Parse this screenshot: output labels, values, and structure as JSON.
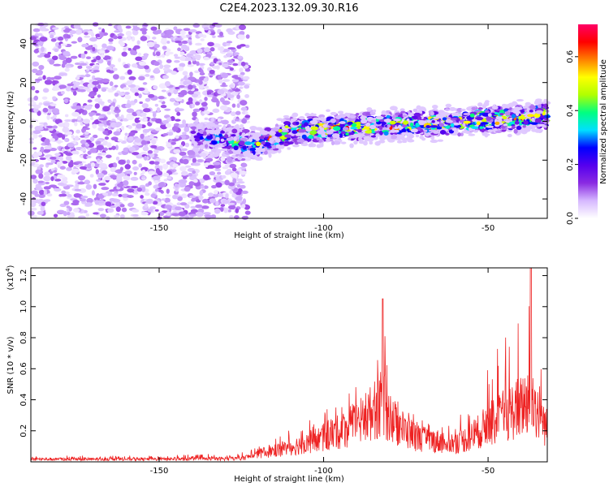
{
  "title": "C2E4.2023.132.09.30.R16",
  "chart_data": [
    {
      "type": "heatmap",
      "xlabel": "Height of straight line (km)",
      "ylabel": "Frequency (Hz)",
      "xlim": [
        -189,
        -32
      ],
      "ylim": [
        -50,
        50
      ],
      "xticks": [
        -150,
        -100,
        -50
      ],
      "xtick_labels": [
        "-150",
        "-100",
        "-50"
      ],
      "yticks": [
        -40,
        -20,
        0,
        20,
        40
      ],
      "ytick_labels": [
        "-40",
        "-20",
        "0",
        "20",
        "40"
      ],
      "colorbar": {
        "label": "Normalized spectral amplitude",
        "range": [
          0,
          0.72
        ],
        "ticks": [
          0.0,
          0.2,
          0.4,
          0.6
        ],
        "tick_labels": [
          "0.0",
          "0.2",
          "0.4",
          "0.6"
        ],
        "colors": [
          "#ffffff",
          "#d6b8ff",
          "#8a2be2",
          "#5500ee",
          "#0000ff",
          "#00e0ff",
          "#00ff80",
          "#b0ff00",
          "#ffff00",
          "#ff8000",
          "#ff0000",
          "#ff0066"
        ]
      },
      "noise_region": {
        "x": [
          -189,
          -123
        ],
        "amplitude": [
          0,
          0.12
        ]
      },
      "signal_band": {
        "x": [
          -140,
          -32
        ],
        "center_freq": [
          [
            -140,
            -7
          ],
          [
            -120,
            -12
          ],
          [
            -110,
            -5
          ],
          [
            -100,
            -4
          ],
          [
            -80,
            -2
          ],
          [
            -60,
            0
          ],
          [
            -40,
            2
          ],
          [
            -32,
            3
          ]
        ],
        "half_width_hz": 5,
        "peak_amplitude": 0.7
      }
    },
    {
      "type": "line",
      "xlabel": "Height of straight line (km)",
      "ylabel": "SNR (10 * v/v)",
      "ylabel_exponent": "(x10",
      "exponent_power": "4",
      "exponent_close": ")",
      "xlim": [
        -189,
        -32
      ],
      "ylim": [
        0,
        12500
      ],
      "xticks": [
        -150,
        -100,
        -50
      ],
      "xtick_labels": [
        "-150",
        "-100",
        "-50"
      ],
      "yticks": [
        2000,
        4000,
        6000,
        8000,
        10000,
        12000
      ],
      "ytick_labels": [
        "0.2",
        "0.4",
        "0.6",
        "0.8",
        "1.0",
        "1.2"
      ],
      "color": "#ee2222",
      "envelope": {
        "x": [
          -189,
          -150,
          -125,
          -118,
          -110,
          -100,
          -90,
          -84,
          -82,
          -80,
          -75,
          -70,
          -60,
          -55,
          -50,
          -45,
          -40,
          -37,
          -35,
          -32
        ],
        "mean": [
          200,
          200,
          250,
          700,
          1100,
          1800,
          2800,
          4000,
          4500,
          3300,
          2300,
          1700,
          1400,
          1900,
          2800,
          3500,
          4200,
          5000,
          3800,
          2500
        ],
        "peak": [
          400,
          400,
          600,
          1200,
          2200,
          3200,
          5000,
          7000,
          10500,
          4500,
          3500,
          2800,
          3000,
          4000,
          6500,
          8000,
          10200,
          12500,
          8000,
          6000
        ]
      }
    }
  ]
}
